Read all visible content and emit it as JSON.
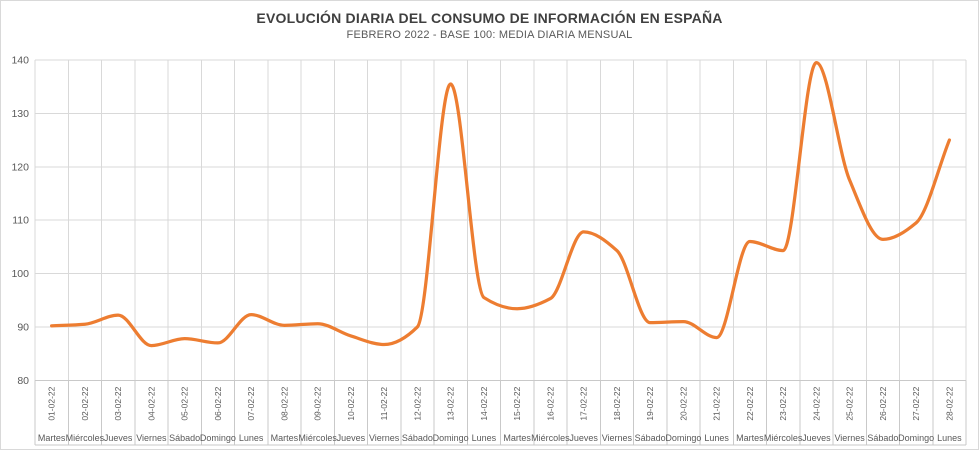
{
  "chart_data": {
    "type": "line",
    "title": "EVOLUCIÓN DIARIA DEL CONSUMO DE INFORMACIÓN EN ESPAÑA",
    "subtitle": "FEBRERO 2022 - BASE 100: MEDIA DIARIA MENSUAL",
    "x_dates": [
      "01-02-22",
      "02-02-22",
      "03-02-22",
      "04-02-22",
      "05-02-22",
      "06-02-22",
      "07-02-22",
      "08-02-22",
      "09-02-22",
      "10-02-22",
      "11-02-22",
      "12-02-22",
      "13-02-22",
      "14-02-22",
      "15-02-22",
      "16-02-22",
      "17-02-22",
      "18-02-22",
      "19-02-22",
      "20-02-22",
      "21-02-22",
      "22-02-22",
      "23-02-22",
      "24-02-22",
      "25-02-22",
      "26-02-22",
      "27-02-22",
      "28-02-22"
    ],
    "x_days": [
      "Martes",
      "Miércoles",
      "Jueves",
      "Viernes",
      "Sábado",
      "Domingo",
      "Lunes",
      "Martes",
      "Miércoles",
      "Jueves",
      "Viernes",
      "Sábado",
      "Domingo",
      "Lunes",
      "Martes",
      "Miércoles",
      "Jueves",
      "Viernes",
      "Sábado",
      "Domingo",
      "Lunes",
      "Martes",
      "Miércoles",
      "Jueves",
      "Viernes",
      "Sábado",
      "Domingo",
      "Lunes"
    ],
    "values": [
      90.2,
      90.5,
      92.2,
      86.5,
      87.8,
      87.0,
      92.3,
      90.3,
      90.6,
      88.3,
      86.7,
      90.0,
      135.5,
      95.5,
      93.4,
      95.3,
      107.8,
      104.3,
      90.8,
      91.0,
      88.0,
      106.0,
      104.3,
      139.5,
      117.5,
      106.4,
      109.5,
      125.0
    ],
    "ylim": [
      80,
      140
    ],
    "y_ticks": [
      80,
      90,
      100,
      110,
      120,
      130,
      140
    ],
    "grid": true,
    "legend": "none",
    "line_color": "#ED7D31",
    "grid_color": "#D9D9D9",
    "axis_line_color": "#C9C9C9",
    "label_color": "#595959",
    "title_color": "#3F3F3F"
  }
}
